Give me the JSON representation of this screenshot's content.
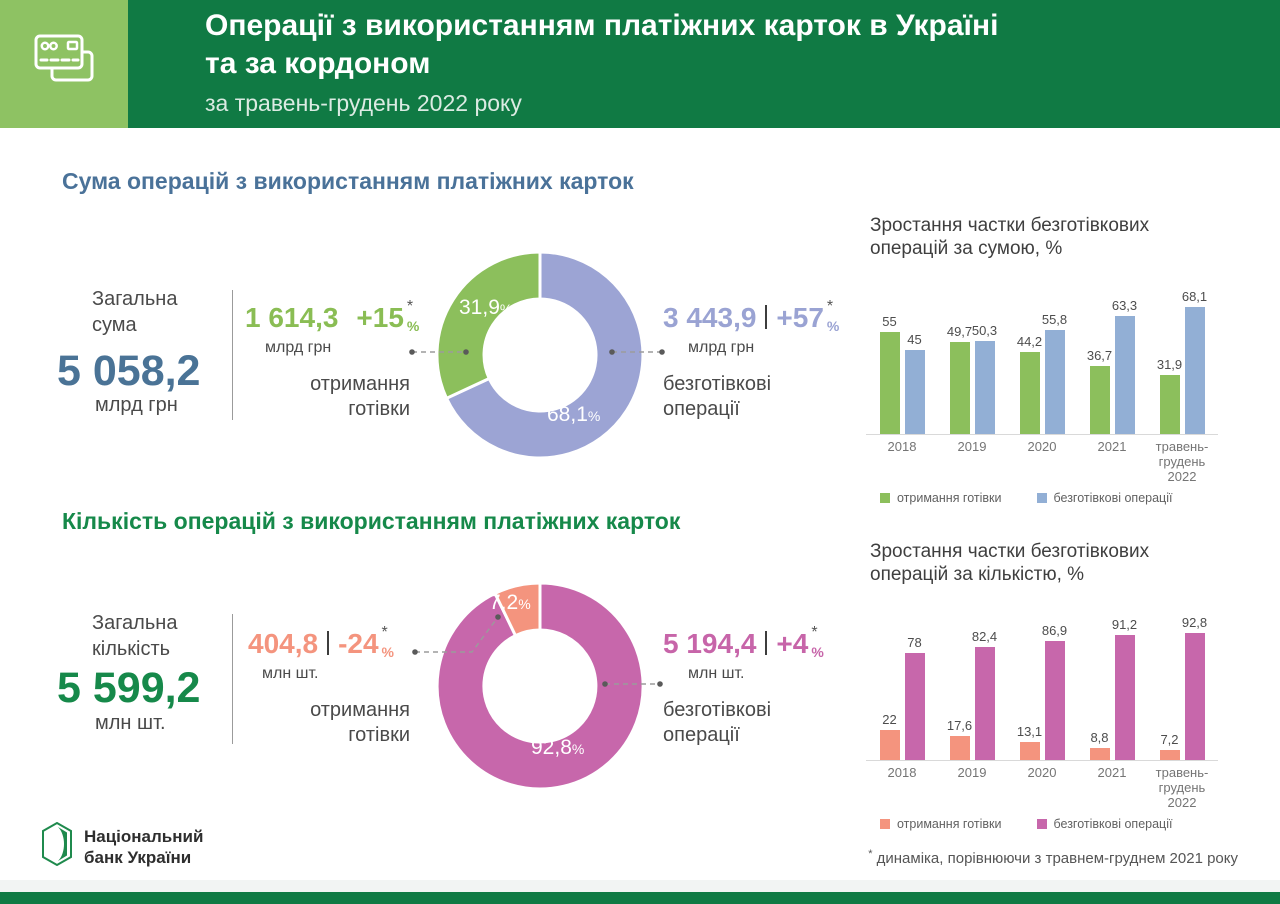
{
  "page": {
    "percent_sign": "%",
    "note_mark": "*",
    "footnote": "динаміка, порівнюючи з травнем-груднем 2021 року",
    "logo_text": "Національний\nбанк України",
    "background": "#FFFFFF",
    "footer_bar_color": "#107A44"
  },
  "header": {
    "title_line1": "Операції з використанням платіжних карток в Україні",
    "title_line2": "та за кордоном",
    "subtitle": "за травень-грудень 2022 року",
    "banner_color": "#107A44",
    "icon_box_color": "#8EC263",
    "icon": "payment-cards-icon"
  },
  "sum_section": {
    "title": "Сума операцій з використанням платіжних карток",
    "title_color": "#4A7299",
    "total": {
      "label": "Загальна\nсума",
      "value": "5 058,2",
      "unit": "млрд грн",
      "value_color": "#4A7396"
    },
    "cash": {
      "value": "1 614,3",
      "delta": "+15",
      "unit": "млрд грн",
      "label": "отримання\nготівки",
      "color": "#8ABD54"
    },
    "cashless": {
      "value": "3 443,9",
      "delta": "+57",
      "unit": "млрд грн",
      "label": "безготівкові\nоперації",
      "color": "#9AA3D3"
    }
  },
  "count_section": {
    "title": "Кількість операцій з використанням платіжних карток",
    "title_color": "#16894A",
    "total": {
      "label": "Загальна\nкількість",
      "value": "5 599,2",
      "unit": "млн шт.",
      "value_color": "#16894A"
    },
    "cash": {
      "value": "404,8",
      "delta": "-24",
      "unit": "млн шт.",
      "label": "отримання\nготівки",
      "color": "#F4947E"
    },
    "cashless": {
      "value": "5 194,4",
      "delta": "+4",
      "unit": "млн шт.",
      "label": "безготівкові\nоперації",
      "color": "#C765A9"
    }
  },
  "chart_data": [
    {
      "id": "sum-donut",
      "type": "pie",
      "subtype": "donut",
      "title": "Сума операцій з використанням платіжних карток",
      "slices": [
        {
          "label": "безготівкові операції",
          "value": 68.1,
          "pct_label": "68,1",
          "color": "#9CA4D4"
        },
        {
          "label": "отримання готівки",
          "value": 31.9,
          "pct_label": "31,9",
          "color": "#8CBF5C"
        }
      ],
      "start_angle_deg": 0,
      "clockwise": true
    },
    {
      "id": "sum-bars",
      "type": "bar",
      "title": "Зростання частки безготівкових\nоперацій за сумою, %",
      "categories": [
        "2018",
        "2019",
        "2020",
        "2021",
        "травень-\nгрудень 2022"
      ],
      "series": [
        {
          "name": "отримання готівки",
          "color": "#8CBF5C",
          "values": [
            55,
            49.7,
            44.2,
            36.7,
            31.9
          ],
          "labels": [
            "55",
            "49,7",
            "44,2",
            "36,7",
            "31,9"
          ]
        },
        {
          "name": "безготівкові операції",
          "color": "#92AFD5",
          "values": [
            45,
            50.3,
            55.8,
            63.3,
            68.1
          ],
          "labels": [
            "45",
            "50,3",
            "55,8",
            "63,3",
            "68,1"
          ]
        }
      ],
      "ylim": [
        0,
        85
      ],
      "grid": false,
      "legend_position": "bottom"
    },
    {
      "id": "count-donut",
      "type": "pie",
      "subtype": "donut",
      "title": "Кількість операцій з використанням платіжних карток",
      "slices": [
        {
          "label": "безготівкові операції",
          "value": 92.8,
          "pct_label": "92,8",
          "color": "#C767AB"
        },
        {
          "label": "отримання готівки",
          "value": 7.2,
          "pct_label": "7,2",
          "color": "#F4947E"
        }
      ],
      "start_angle_deg": 0,
      "clockwise": true
    },
    {
      "id": "count-bars",
      "type": "bar",
      "title": "Зростання частки безготівкових\nоперацій за кількістю, %",
      "categories": [
        "2018",
        "2019",
        "2020",
        "2021",
        "травень-\nгрудень 2022"
      ],
      "series": [
        {
          "name": "отримання готівки",
          "color": "#F4947E",
          "values": [
            22,
            17.6,
            13.1,
            8.8,
            7.2
          ],
          "labels": [
            "22",
            "17,6",
            "13,1",
            "8,8",
            "7,2"
          ]
        },
        {
          "name": "безготівкові операції",
          "color": "#C767AB",
          "values": [
            78,
            82.4,
            86.9,
            91.2,
            92.8
          ],
          "labels": [
            "78",
            "82,4",
            "86,9",
            "91,2",
            "92,8"
          ]
        }
      ],
      "ylim": [
        0,
        115
      ],
      "grid": false,
      "legend_position": "bottom"
    }
  ]
}
